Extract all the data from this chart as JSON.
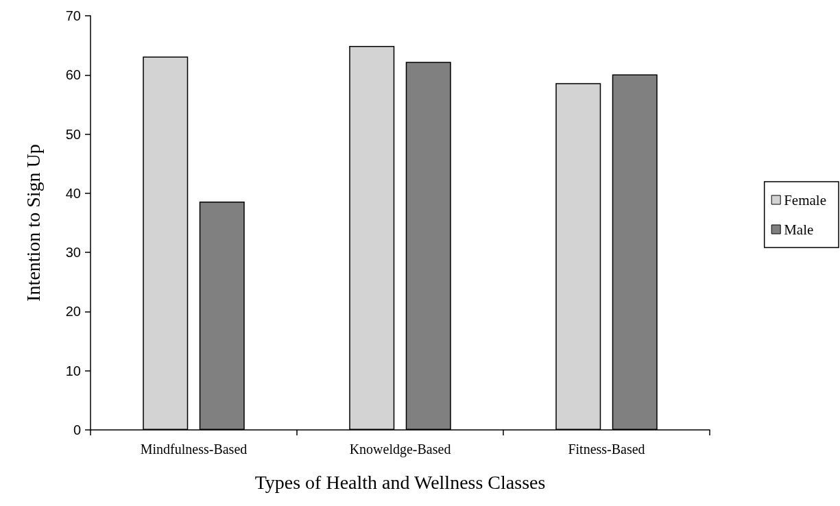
{
  "chart_data": {
    "type": "bar",
    "xlabel": "Types of Health and Wellness Classes",
    "ylabel": "Intention to Sign Up",
    "categories": [
      "Mindfulness-Based",
      "Knoweldge-Based",
      "Fitness-Based"
    ],
    "series": [
      {
        "name": "Female",
        "color": "#d3d3d3",
        "values": [
          63.1,
          64.9,
          58.6
        ]
      },
      {
        "name": "Male",
        "color": "#808080",
        "values": [
          38.6,
          62.2,
          60.1
        ]
      }
    ],
    "ylim": [
      0,
      70
    ],
    "yticks": [
      0,
      10,
      20,
      30,
      40,
      50,
      60,
      70
    ],
    "grid": false,
    "legend": "right"
  }
}
